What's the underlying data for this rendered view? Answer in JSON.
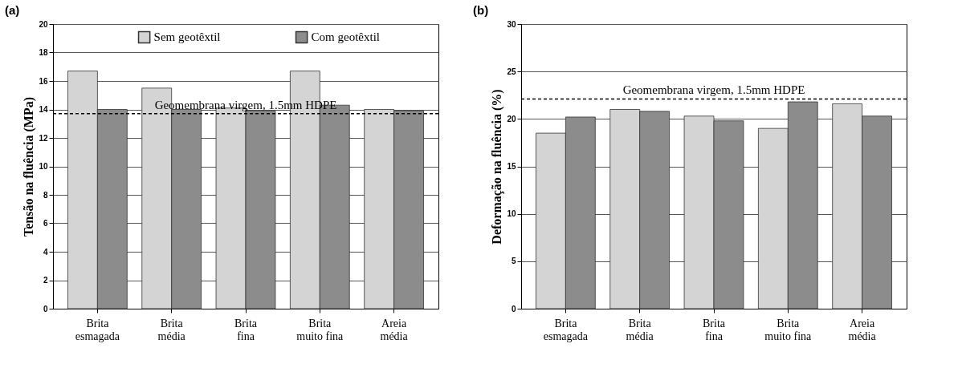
{
  "chart_data": [
    {
      "type": "bar",
      "title": "(a)",
      "ylabel": "Tensão na fluência (MPa)",
      "categories": [
        "Brita\nesmagada",
        "Brita\nmédia",
        "Brita\nfina",
        "Brita\nmuito fina",
        "Areia\nmédia"
      ],
      "series": [
        {
          "name": "Sem geotêxtil",
          "color": "#d4d4d4",
          "values": [
            16.7,
            15.5,
            14.1,
            16.7,
            14.0
          ]
        },
        {
          "name": "Com geotêxtil",
          "color": "#8c8c8c",
          "values": [
            14.0,
            14.0,
            13.9,
            14.3,
            13.9
          ]
        }
      ],
      "ylim": [
        0,
        20
      ],
      "yticks": [
        0,
        2,
        4,
        6,
        8,
        10,
        12,
        14,
        16,
        18,
        20
      ],
      "grid": "y",
      "legend": "top",
      "ref_lines": [
        {
          "axis": "y",
          "value": 13.7,
          "label": "Geomembrana virgem, 1.5mm HDPE",
          "line_style": "dashed",
          "color": "#000000"
        }
      ]
    },
    {
      "type": "bar",
      "title": "(b)",
      "ylabel": "Deformação na fluência (%)",
      "categories": [
        "Brita\nesmagada",
        "Brita\nmédia",
        "Brita\nfina",
        "Brita\nmuito fina",
        "Areia\nmédia"
      ],
      "series": [
        {
          "name": "Sem geotêxtil",
          "color": "#d4d4d4",
          "values": [
            18.5,
            21.0,
            20.3,
            19.0,
            21.6
          ]
        },
        {
          "name": "Com geotêxtil",
          "color": "#8c8c8c",
          "values": [
            20.2,
            20.8,
            19.8,
            21.8,
            20.3
          ]
        }
      ],
      "ylim": [
        0,
        30
      ],
      "yticks": [
        0,
        5,
        10,
        15,
        20,
        25,
        30
      ],
      "grid": "y",
      "legend": "top",
      "ref_lines": [
        {
          "axis": "y",
          "value": 22.1,
          "label": "Geomembrana virgem, 1.5mm HDPE",
          "line_style": "dashed",
          "color": "#000000"
        }
      ]
    }
  ]
}
